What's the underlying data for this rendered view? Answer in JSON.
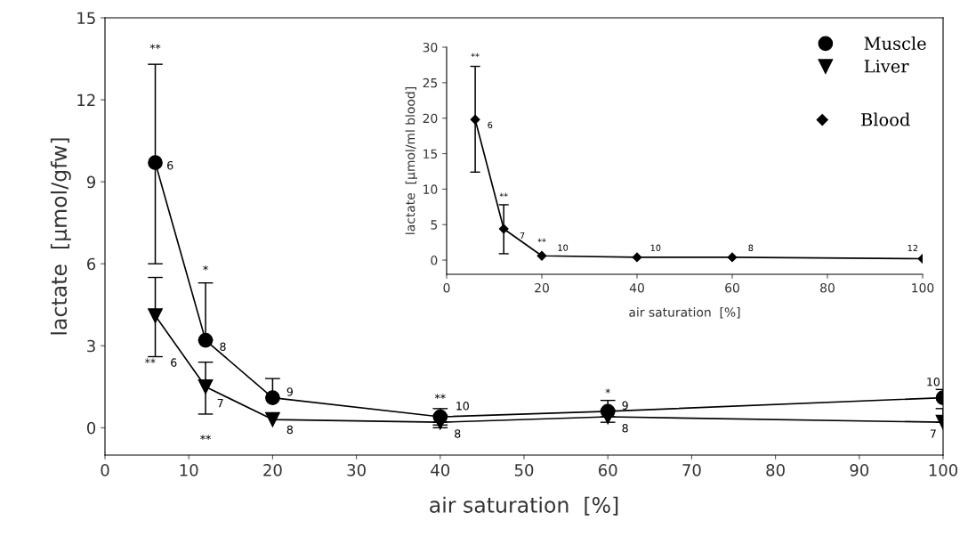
{
  "chart_data": [
    {
      "type": "line",
      "xlabel": "air saturation  [%]",
      "ylabel": "lactate  [μmol/gfw]",
      "xlim": [
        0,
        100
      ],
      "ylim": [
        -1,
        15
      ],
      "xticks": [
        0,
        10,
        20,
        30,
        40,
        50,
        60,
        70,
        80,
        90,
        100
      ],
      "yticks": [
        0,
        3,
        6,
        9,
        12,
        15
      ],
      "grid": false,
      "legend": "top right",
      "series": [
        {
          "name": "Muscle",
          "color": "#000000",
          "marker": "circle",
          "x": [
            6,
            12,
            20,
            40,
            60,
            100
          ],
          "values": [
            9.7,
            3.2,
            1.1,
            0.4,
            0.6,
            1.1
          ],
          "errors": [
            [
              6.0,
              13.3
            ],
            [
              3.2,
              5.3
            ],
            [
              1.1,
              1.8
            ],
            [
              0.1,
              0.7
            ],
            [
              0.6,
              1.0
            ],
            [
              1.1,
              1.4
            ]
          ]
        },
        {
          "name": "Liver",
          "color": "#000000",
          "marker": "triangle",
          "x": [
            6,
            12,
            20,
            40,
            60,
            100
          ],
          "values": [
            4.1,
            1.5,
            0.3,
            0.2,
            0.4,
            0.2
          ],
          "errors": [
            [
              2.6,
              5.5
            ],
            [
              0.5,
              2.4
            ],
            null,
            [
              0.0,
              0.2
            ],
            [
              0.2,
              0.4
            ],
            [
              0.2,
              0.7
            ]
          ]
        }
      ],
      "annotations": [
        "**",
        {
          "text": "6",
          "x": 6,
          "y": 9.7
        },
        "**",
        "6",
        "*",
        {
          "text": "8",
          "x": 12,
          "y": 3.2
        },
        {
          "text": "7",
          "x": 12,
          "y": 1.5
        },
        "**",
        {
          "text": "9",
          "x": 20,
          "y": 1.1
        },
        {
          "text": "8",
          "x": 20,
          "y": 0.3
        },
        "**",
        {
          "text": "10",
          "x": 40,
          "y": 0.4
        },
        {
          "text": "8",
          "x": 40,
          "y": 0.2
        },
        "*",
        {
          "text": "9",
          "x": 60,
          "y": 0.6
        },
        {
          "text": "8",
          "x": 60,
          "y": 0.4
        },
        {
          "text": "10",
          "x": 100,
          "y": 1.1
        },
        {
          "text": "7",
          "x": 100,
          "y": 0.2
        }
      ]
    },
    {
      "type": "line",
      "xlabel": "air saturation  [%]",
      "ylabel": "lactate  [μmol/ml blood]",
      "xlim": [
        0,
        100
      ],
      "ylim": [
        -2,
        30
      ],
      "xticks": [
        0,
        20,
        40,
        60,
        80,
        100
      ],
      "yticks": [
        0,
        5,
        10,
        15,
        20,
        25,
        30
      ],
      "grid": false,
      "legend": "top right",
      "series": [
        {
          "name": "Blood",
          "color": "#000000",
          "marker": "diamond",
          "x": [
            6,
            12,
            20,
            40,
            60,
            100
          ],
          "values": [
            19.8,
            4.4,
            0.6,
            0.4,
            0.4,
            0.2
          ],
          "errors": [
            [
              12.4,
              27.3
            ],
            [
              0.9,
              7.8
            ],
            null,
            null,
            null,
            null
          ]
        }
      ],
      "annotations": [
        "**",
        {
          "text": "6",
          "x": 6,
          "y": 19.8
        },
        "**",
        {
          "text": "7",
          "x": 12,
          "y": 4.4
        },
        "**",
        {
          "text": "10",
          "x": 20,
          "y": 0.6
        },
        {
          "text": "10",
          "x": 40,
          "y": 0.4
        },
        {
          "text": "8",
          "x": 60,
          "y": 0.4
        },
        {
          "text": "12",
          "x": 100,
          "y": 0.2
        }
      ]
    }
  ]
}
